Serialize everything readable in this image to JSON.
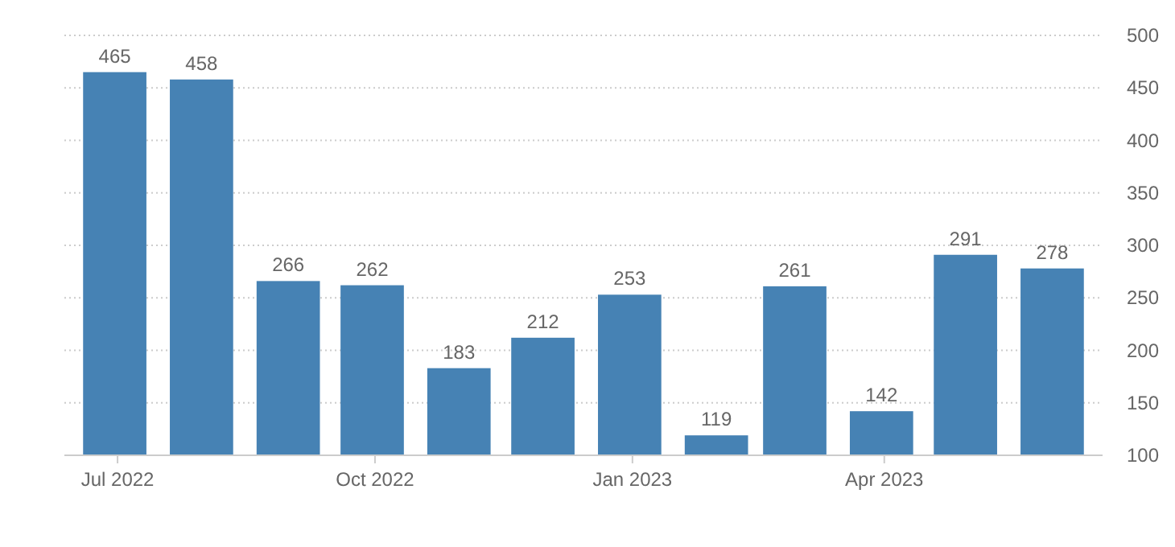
{
  "chart_data": {
    "type": "bar",
    "x": [
      "2022-06-30",
      "2022-07-31",
      "2022-08-31",
      "2022-09-30",
      "2022-10-31",
      "2022-11-30",
      "2022-12-31",
      "2023-01-31",
      "2023-02-28",
      "2023-03-31",
      "2023-04-30",
      "2023-05-31"
    ],
    "values": [
      465,
      458,
      266,
      262,
      183,
      212,
      253,
      119,
      261,
      142,
      291,
      278
    ],
    "color": "#4682b4",
    "xlim": [
      "2022-06-12",
      "2023-06-18"
    ],
    "xticks": [
      {
        "value": "2022-07-01",
        "label": "Jul 2022"
      },
      {
        "value": "2022-10-01",
        "label": "Oct 2022"
      },
      {
        "value": "2023-01-01",
        "label": "Jan 2023"
      },
      {
        "value": "2023-04-01",
        "label": "Apr 2023"
      }
    ],
    "ylim": [
      100,
      500
    ],
    "yticks": [
      100,
      150,
      200,
      250,
      300,
      350,
      400,
      450,
      500
    ],
    "grid": "y",
    "data_labels": true
  }
}
